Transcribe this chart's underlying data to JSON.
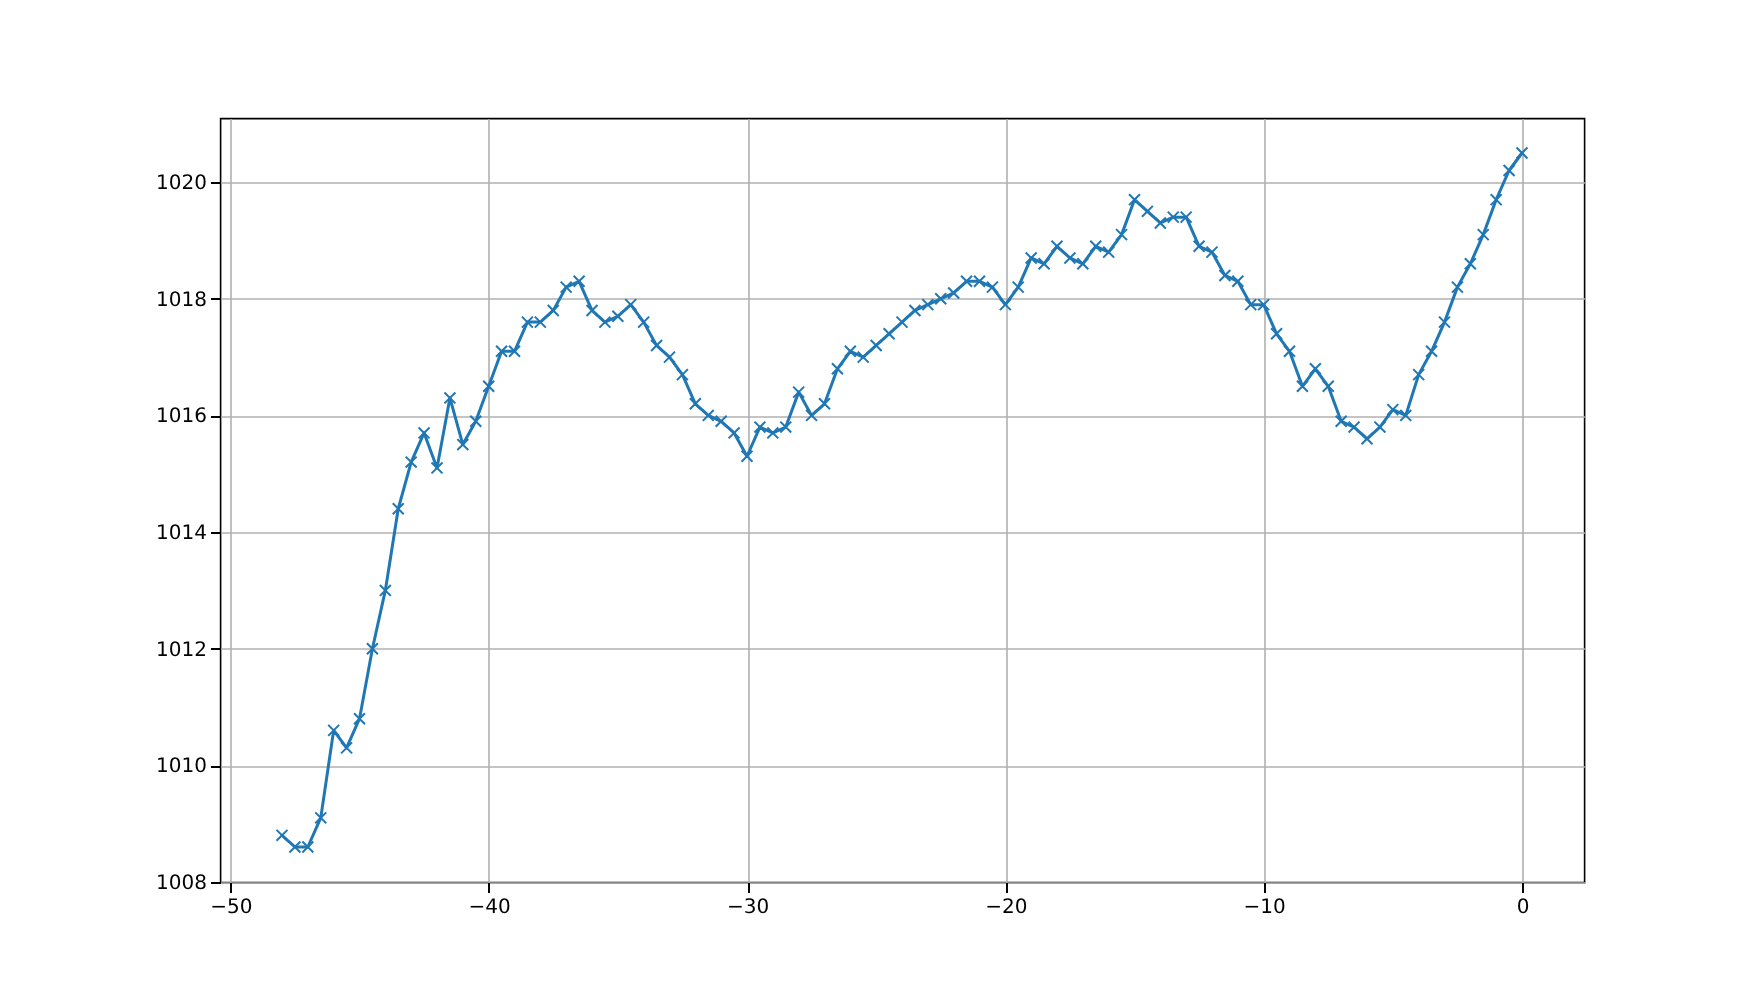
{
  "chart_data": {
    "type": "line",
    "marker": "cross",
    "line_style": "solid",
    "grid": true,
    "xlim": [
      -50.4,
      2.4
    ],
    "ylim": [
      1008,
      1021.1
    ],
    "xticks": [
      -50,
      -40,
      -30,
      -20,
      -10,
      0
    ],
    "yticks": [
      1008,
      1010,
      1012,
      1014,
      1016,
      1018,
      1020
    ],
    "x": [
      -48,
      -47.5,
      -47,
      -46.5,
      -46,
      -45.5,
      -45,
      -44.5,
      -44,
      -43.5,
      -43,
      -42.5,
      -42,
      -41.5,
      -41,
      -40.5,
      -40,
      -39.5,
      -39,
      -38.5,
      -38,
      -37.5,
      -37,
      -36.5,
      -36,
      -35.5,
      -35,
      -34.5,
      -34,
      -33.5,
      -33,
      -32.5,
      -32,
      -31.5,
      -31,
      -30.5,
      -30,
      -29.5,
      -29,
      -28.5,
      -28,
      -27.5,
      -27,
      -26.5,
      -26,
      -25.5,
      -25,
      -24.5,
      -24,
      -23.5,
      -23,
      -22.5,
      -22,
      -21.5,
      -21,
      -20.5,
      -20,
      -19.5,
      -19,
      -18.5,
      -18,
      -17.5,
      -17,
      -16.5,
      -16,
      -15.5,
      -15,
      -14.5,
      -14,
      -13.5,
      -13,
      -12.5,
      -12,
      -11.5,
      -11,
      -10.5,
      -10,
      -9.5,
      -9,
      -8.5,
      -8,
      -7.5,
      -7,
      -6.5,
      -6,
      -5.5,
      -5,
      -4.5,
      -4,
      -3.5,
      -3,
      -2.5,
      -2,
      -1.5,
      -1,
      -0.5,
      0
    ],
    "series": [
      {
        "color": "#1f77b4",
        "values": [
          1008.8,
          1008.6,
          1008.6,
          1009.1,
          1010.6,
          1010.3,
          1010.8,
          1012.0,
          1013.0,
          1014.4,
          1015.2,
          1015.7,
          1015.1,
          1016.3,
          1015.5,
          1015.9,
          1016.5,
          1017.1,
          1017.1,
          1017.6,
          1017.6,
          1017.8,
          1018.2,
          1018.3,
          1017.8,
          1017.6,
          1017.7,
          1017.9,
          1017.6,
          1017.2,
          1017.0,
          1016.7,
          1016.2,
          1016.0,
          1015.9,
          1015.7,
          1015.3,
          1015.8,
          1015.7,
          1015.8,
          1016.4,
          1016.0,
          1016.2,
          1016.8,
          1017.1,
          1017.0,
          1017.2,
          1017.4,
          1017.6,
          1017.8,
          1017.9,
          1018.0,
          1018.1,
          1018.3,
          1018.3,
          1018.2,
          1017.9,
          1018.2,
          1018.7,
          1018.6,
          1018.9,
          1018.7,
          1018.6,
          1018.9,
          1018.8,
          1019.1,
          1019.7,
          1019.5,
          1019.3,
          1019.4,
          1019.4,
          1018.9,
          1018.8,
          1018.4,
          1018.3,
          1017.9,
          1017.9,
          1017.4,
          1017.1,
          1016.5,
          1016.8,
          1016.5,
          1015.9,
          1015.8,
          1015.6,
          1015.8,
          1016.1,
          1016.0,
          1016.7,
          1017.1,
          1017.6,
          1018.2,
          1018.6,
          1019.1,
          1019.7,
          1020.2,
          1020.5
        ]
      }
    ]
  }
}
